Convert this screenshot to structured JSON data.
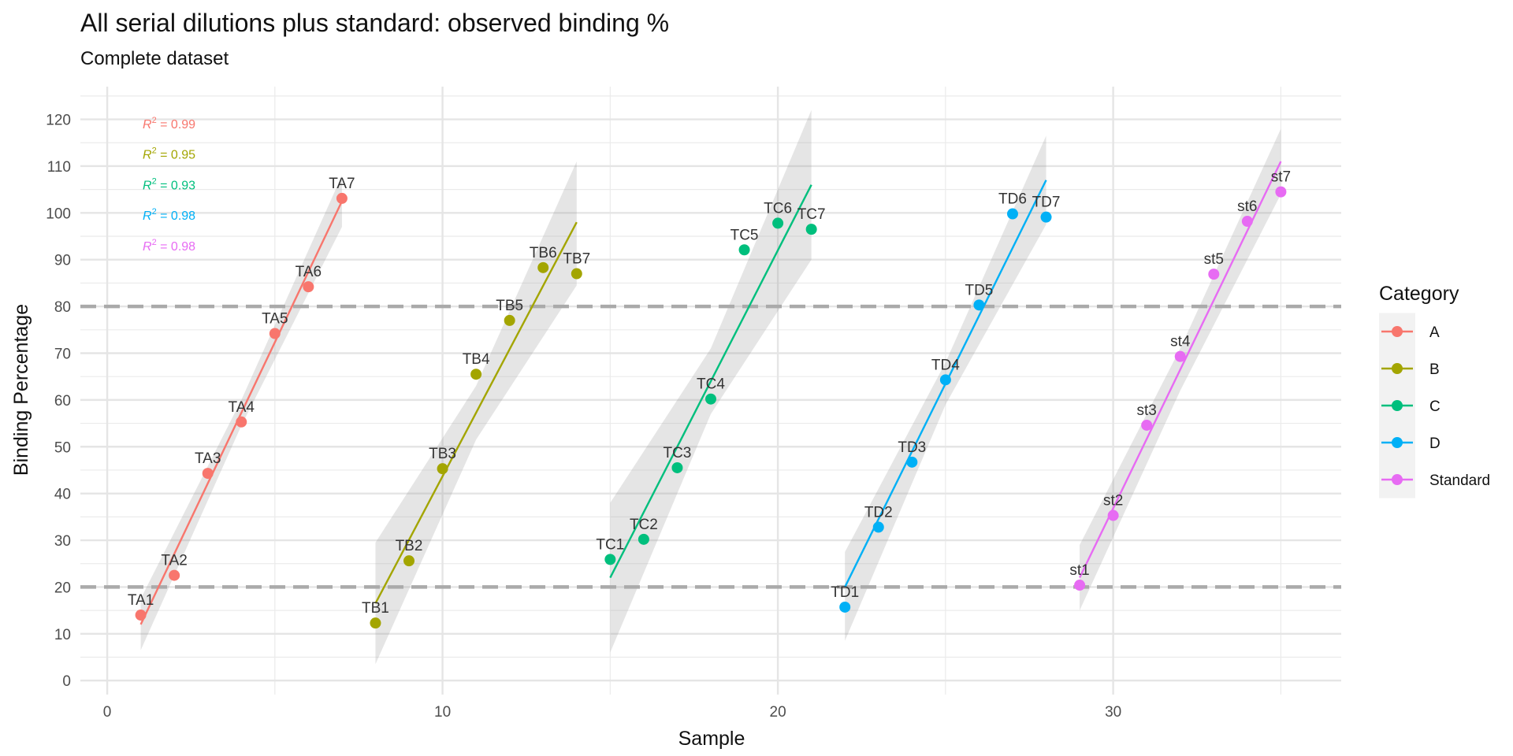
{
  "chart_data": {
    "type": "scatter",
    "title": "All serial dilutions plus standard: observed binding %",
    "subtitle": "Complete dataset",
    "xlabel": "Sample",
    "ylabel": "Binding Percentage",
    "xlim": [
      -0.8,
      36.8
    ],
    "ylim": [
      -3,
      127
    ],
    "x_breaks": [
      0,
      10,
      20,
      30
    ],
    "x_minor_breaks": [
      5,
      15,
      25,
      35
    ],
    "y_breaks": [
      0,
      10,
      20,
      30,
      40,
      50,
      60,
      70,
      80,
      90,
      100,
      110,
      120
    ],
    "y_minor_breaks": [
      5,
      15,
      25,
      35,
      45,
      55,
      65,
      75,
      85,
      95,
      105,
      115,
      125
    ],
    "grid": true,
    "legend": {
      "title": "Category",
      "position": "right"
    },
    "reference_lines": [
      80,
      20
    ],
    "series": [
      {
        "name": "A",
        "color": "#F8766D",
        "r2": "0.99",
        "x": [
          1,
          2,
          3,
          4,
          5,
          6,
          7
        ],
        "y": [
          14.0,
          22.5,
          44.3,
          55.3,
          74.2,
          84.2,
          103.1
        ],
        "labels": [
          "TA1",
          "TA2",
          "TA3",
          "TA4",
          "TA5",
          "TA6",
          "TA7"
        ],
        "fit": {
          "x0": 1,
          "y0": 12.0,
          "x1": 7,
          "y1": 102.5
        },
        "band": [
          {
            "x": 1,
            "lo": 6.5,
            "hi": 17.5
          },
          {
            "x": 4,
            "lo": 54.5,
            "hi": 60.0
          },
          {
            "x": 7,
            "lo": 97.0,
            "hi": 108.0
          }
        ]
      },
      {
        "name": "B",
        "color": "#A3A500",
        "r2": "0.95",
        "x": [
          8,
          9,
          10,
          11,
          12,
          13,
          14
        ],
        "y": [
          12.3,
          25.6,
          45.3,
          65.5,
          77.0,
          88.3,
          87.0
        ],
        "labels": [
          "TB1",
          "TB2",
          "TB3",
          "TB4",
          "TB5",
          "TB6",
          "TB7"
        ],
        "fit": {
          "x0": 8,
          "y0": 16.5,
          "x1": 14,
          "y1": 98.0
        },
        "band": [
          {
            "x": 8,
            "lo": 3.5,
            "hi": 29.5
          },
          {
            "x": 11,
            "lo": 51.5,
            "hi": 63.0
          },
          {
            "x": 14,
            "lo": 84.5,
            "hi": 111.0
          }
        ]
      },
      {
        "name": "C",
        "color": "#00BF7D",
        "r2": "0.93",
        "x": [
          15,
          16,
          17,
          18,
          19,
          20,
          21
        ],
        "y": [
          25.9,
          30.2,
          45.5,
          60.2,
          92.1,
          97.8,
          96.5
        ],
        "labels": [
          "TC1",
          "TC2",
          "TC3",
          "TC4",
          "TC5",
          "TC6",
          "TC7"
        ],
        "fit": {
          "x0": 15,
          "y0": 22.0,
          "x1": 21,
          "y1": 106.0
        },
        "band": [
          {
            "x": 15,
            "lo": 6.0,
            "hi": 38.0
          },
          {
            "x": 18,
            "lo": 57.0,
            "hi": 71.0
          },
          {
            "x": 21,
            "lo": 90.0,
            "hi": 122.0
          }
        ]
      },
      {
        "name": "D",
        "color": "#00B0F6",
        "r2": "0.98",
        "x": [
          22,
          23,
          24,
          25,
          26,
          27,
          28
        ],
        "y": [
          15.7,
          32.8,
          46.7,
          64.3,
          80.3,
          99.8,
          99.1
        ],
        "labels": [
          "TD1",
          "TD2",
          "TD3",
          "TD4",
          "TD5",
          "TD6",
          "TD7"
        ],
        "fit": {
          "x0": 22,
          "y0": 20.0,
          "x1": 28,
          "y1": 107.0
        },
        "band": [
          {
            "x": 22,
            "lo": 8.5,
            "hi": 27.5
          },
          {
            "x": 25,
            "lo": 59.0,
            "hi": 68.0
          },
          {
            "x": 28,
            "lo": 97.5,
            "hi": 116.5
          }
        ]
      },
      {
        "name": "Standard",
        "color": "#E76BF3",
        "r2": "0.98",
        "x": [
          29,
          30,
          31,
          32,
          33,
          34,
          35
        ],
        "y": [
          20.4,
          35.3,
          54.6,
          69.3,
          86.9,
          98.2,
          104.5
        ],
        "labels": [
          "st1",
          "st2",
          "st3",
          "st4",
          "st5",
          "st6",
          "st7"
        ],
        "fit": {
          "x0": 29,
          "y0": 22.0,
          "x1": 35,
          "y1": 111.0
        },
        "band": [
          {
            "x": 29,
            "lo": 15.0,
            "hi": 29.0
          },
          {
            "x": 32,
            "lo": 62.0,
            "hi": 71.0
          },
          {
            "x": 35,
            "lo": 104.0,
            "hi": 118.0
          }
        ]
      }
    ]
  }
}
